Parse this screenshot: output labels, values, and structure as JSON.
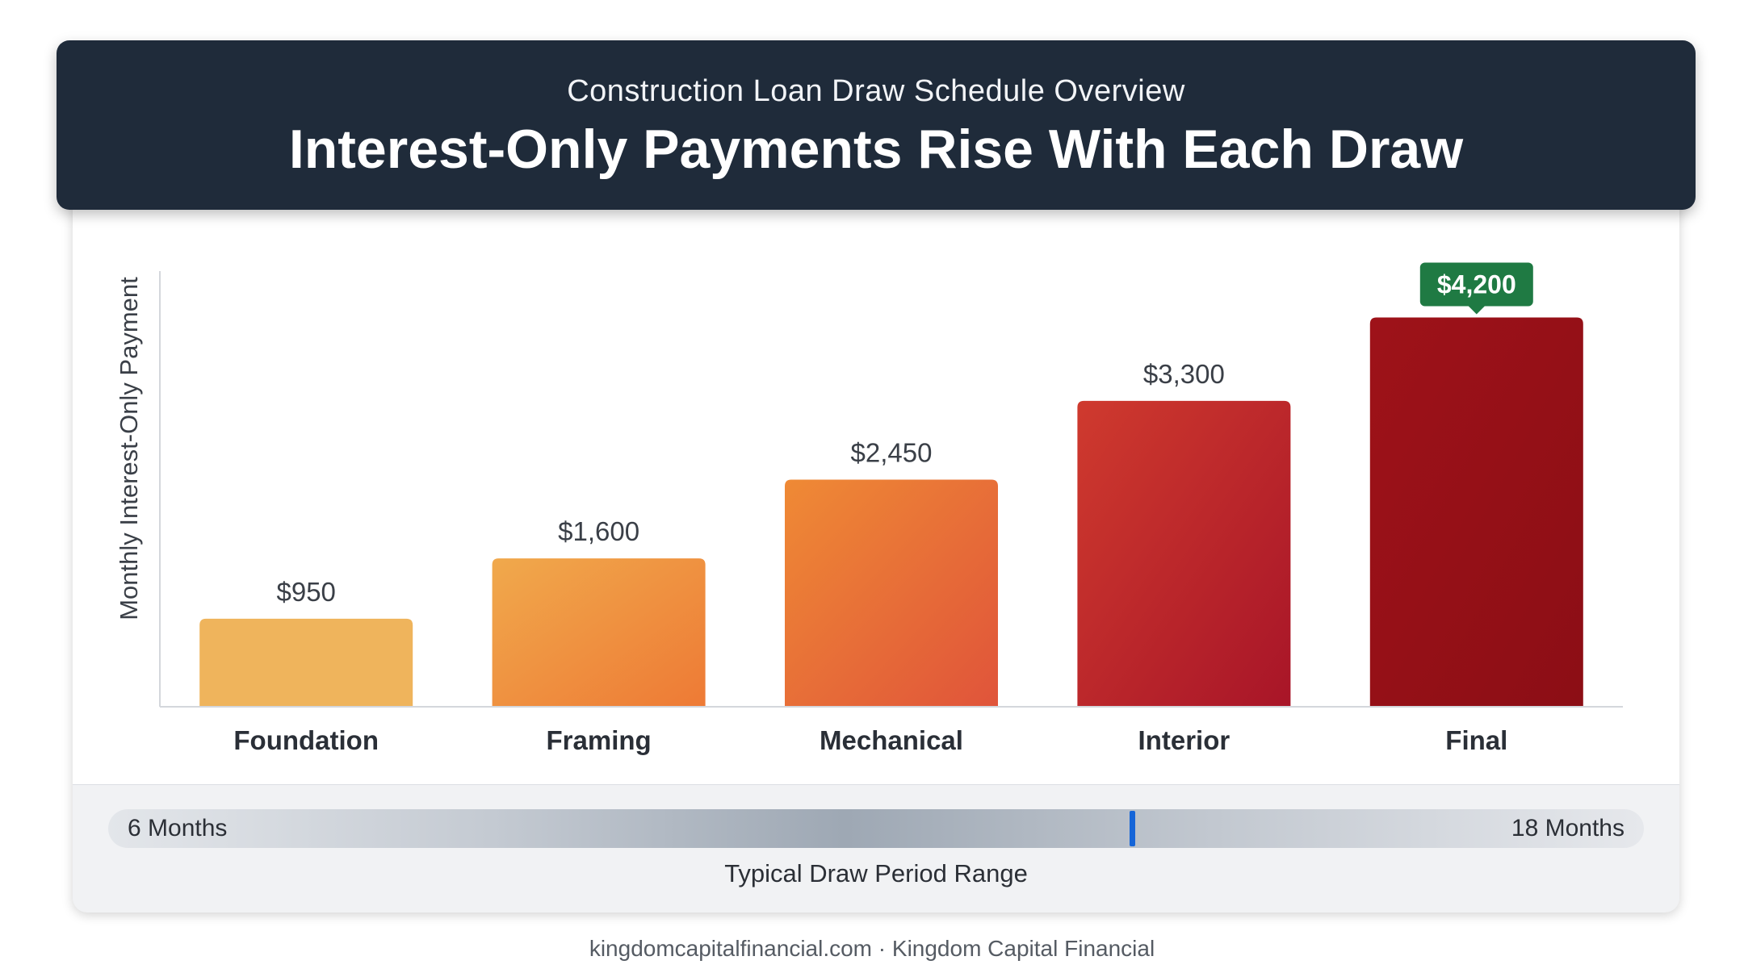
{
  "header": {
    "subtitle": "Construction Loan Draw Schedule Overview",
    "title": "Interest-Only Payments Rise With Each Draw"
  },
  "chart_data": {
    "type": "bar",
    "categories": [
      "Foundation",
      "Framing",
      "Mechanical",
      "Interior",
      "Final"
    ],
    "values": [
      950,
      1600,
      2450,
      3300,
      4200
    ],
    "value_labels": [
      "$950",
      "$1,600",
      "$2,450",
      "$3,300",
      "$4,200"
    ],
    "highlight_index": 4,
    "ylabel": "Monthly Interest-Only Payment",
    "ylim": [
      0,
      4700
    ],
    "grid": false,
    "colors": {
      "start": [
        "#efb45c",
        "#f0a94c",
        "#ef8a35",
        "#cf3a2e",
        "#9e1219"
      ],
      "end": [
        "#efb45c",
        "#ee7a35",
        "#e0543a",
        "#a81528",
        "#8c0e15"
      ],
      "highlight_badge": "#1f7a43"
    }
  },
  "range": {
    "min_label": "6 Months",
    "max_label": "18 Months",
    "caption": "Typical Draw Period Range",
    "marker_fraction": 0.665,
    "marker_color": "#1565d8"
  },
  "footer": {
    "text": "kingdomcapitalfinancial.com · Kingdom Capital Financial"
  }
}
